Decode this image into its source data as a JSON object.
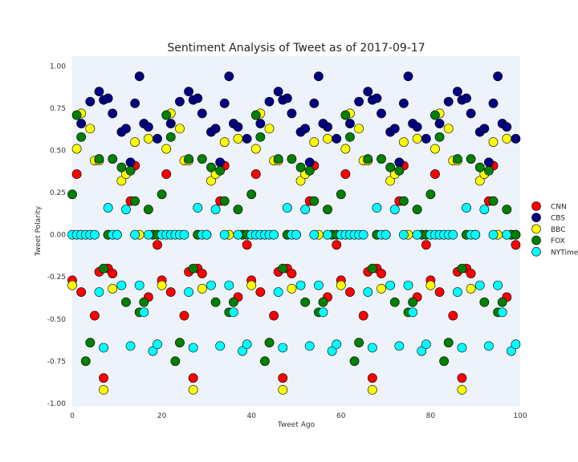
{
  "chart_data": {
    "type": "scatter",
    "title": "Sentiment Analysis of Tweet as of 2017-09-17",
    "xlabel": "Tweet Ago",
    "ylabel": "Tweet Polarity",
    "xlim": [
      0,
      100
    ],
    "ylim": [
      -1.02,
      1.06
    ],
    "x_ticks": [
      0,
      20,
      40,
      60,
      80,
      100
    ],
    "x_tick_labels": [
      "0",
      "20",
      "40",
      "60",
      "80",
      "100"
    ],
    "y_ticks": [
      -1.0,
      -0.75,
      -0.5,
      -0.25,
      0.0,
      0.25,
      0.5,
      0.75,
      1.0
    ],
    "y_tick_labels": [
      "-1.00",
      "-0.75",
      "-0.50",
      "-0.25",
      "0.00",
      "0.25",
      "0.50",
      "0.75",
      "1.00"
    ],
    "grid": false,
    "legend_position": "right",
    "background_color": "#eef3fb",
    "period": 20,
    "cycles": 5,
    "series": [
      {
        "name": "CNN",
        "color": "#ff0000",
        "points": [
          [
            0,
            -0.27
          ],
          [
            1,
            0.36
          ],
          [
            2,
            -0.34
          ],
          [
            5,
            -0.48
          ],
          [
            6,
            -0.22
          ],
          [
            7,
            -0.85
          ],
          [
            8,
            -0.2
          ],
          [
            9,
            -0.23
          ],
          [
            13,
            0.2
          ],
          [
            14,
            0.41
          ],
          [
            17,
            -0.37
          ],
          [
            19,
            -0.06
          ]
        ]
      },
      {
        "name": "CBS",
        "color": "#000080",
        "points": [
          [
            2,
            0.66
          ],
          [
            4,
            0.79
          ],
          [
            6,
            0.85
          ],
          [
            7,
            0.8
          ],
          [
            8,
            0.81
          ],
          [
            9,
            0.72
          ],
          [
            11,
            0.61
          ],
          [
            12,
            0.63
          ],
          [
            13,
            0.43
          ],
          [
            14,
            0.78
          ],
          [
            15,
            0.94
          ],
          [
            16,
            0.66
          ],
          [
            17,
            0.64
          ],
          [
            19,
            0.57
          ]
        ]
      },
      {
        "name": "BBC",
        "color": "#ffff00",
        "points": [
          [
            0,
            -0.3
          ],
          [
            1,
            0.51
          ],
          [
            2,
            0.72
          ],
          [
            4,
            0.63
          ],
          [
            5,
            0.44
          ],
          [
            6,
            0.44
          ],
          [
            7,
            -0.92
          ],
          [
            8,
            0.0
          ],
          [
            9,
            -0.32
          ],
          [
            10,
            0.0
          ],
          [
            11,
            0.32
          ],
          [
            12,
            0.36
          ],
          [
            14,
            0.55
          ],
          [
            15,
            0.0
          ],
          [
            17,
            0.57
          ],
          [
            18,
            0.0
          ],
          [
            19,
            0.0
          ]
        ]
      },
      {
        "name": "FOX",
        "color": "#008000",
        "points": [
          [
            0,
            0.24
          ],
          [
            1,
            0.71
          ],
          [
            2,
            0.58
          ],
          [
            3,
            -0.75
          ],
          [
            4,
            -0.64
          ],
          [
            6,
            0.45
          ],
          [
            7,
            -0.2
          ],
          [
            8,
            0.0
          ],
          [
            9,
            0.45
          ],
          [
            11,
            0.4
          ],
          [
            12,
            -0.4
          ],
          [
            13,
            0.38
          ],
          [
            14,
            0.2
          ],
          [
            15,
            -0.46
          ],
          [
            16,
            -0.4
          ],
          [
            17,
            0.15
          ],
          [
            18,
            0.0
          ],
          [
            19,
            0.0
          ]
        ]
      },
      {
        "name": "NYTimes",
        "color": "#00ffff",
        "points": [
          [
            0,
            0.0
          ],
          [
            1,
            0.0
          ],
          [
            2,
            0.0
          ],
          [
            3,
            0.0
          ],
          [
            4,
            0.0
          ],
          [
            5,
            0.0
          ],
          [
            6,
            -0.34
          ],
          [
            7,
            -0.67
          ],
          [
            8,
            0.16
          ],
          [
            9,
            0.0
          ],
          [
            10,
            0.0
          ],
          [
            11,
            -0.3
          ],
          [
            12,
            0.15
          ],
          [
            13,
            -0.66
          ],
          [
            14,
            0.0
          ],
          [
            15,
            -0.3
          ],
          [
            16,
            -0.46
          ],
          [
            17,
            0.0
          ],
          [
            18,
            -0.69
          ],
          [
            19,
            -0.65
          ]
        ]
      }
    ]
  }
}
